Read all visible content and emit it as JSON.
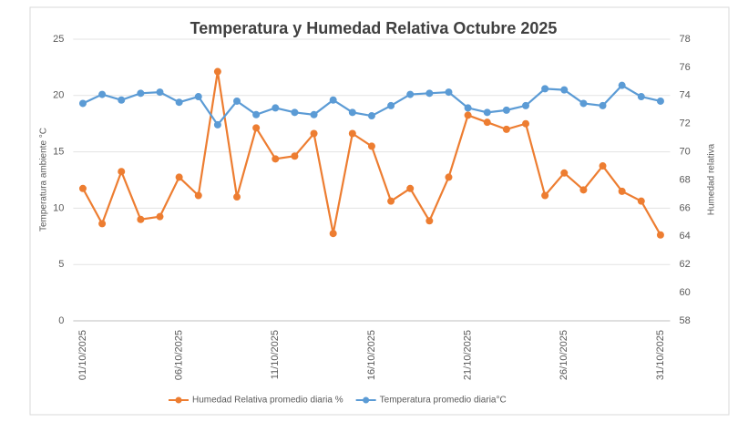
{
  "chart_data": {
    "type": "line",
    "title": "Temperatura y Humedad Relativa Octubre 2025",
    "y_label": "Temperatura ambiente °C",
    "y2_label": "Humedad relativa",
    "categories": [
      "01/10/2025",
      null,
      null,
      null,
      null,
      "06/10/2025",
      null,
      null,
      null,
      null,
      "11/10/2025",
      null,
      null,
      null,
      null,
      "16/10/2025",
      null,
      null,
      null,
      null,
      "21/10/2025",
      null,
      null,
      null,
      null,
      "26/10/2025",
      null,
      null,
      null,
      null,
      "31/10/2025"
    ],
    "series": [
      {
        "name": "Humedad Relativa promedio diaria %",
        "color": "#ed7d31",
        "axis": "y2",
        "values": [
          67.4,
          64.9,
          68.6,
          65.2,
          65.4,
          68.2,
          66.9,
          75.7,
          66.8,
          71.7,
          69.5,
          69.7,
          71.3,
          64.2,
          71.3,
          70.4,
          66.5,
          67.4,
          65.1,
          68.2,
          72.6,
          72.1,
          71.6,
          72.0,
          66.9,
          68.5,
          67.3,
          69.0,
          67.2,
          66.5,
          64.1
        ]
      },
      {
        "name": "Temperatura promedio diaria°C",
        "color": "#5b9bd5",
        "values": [
          19.3,
          20.1,
          19.6,
          20.2,
          20.3,
          19.4,
          19.9,
          17.4,
          19.5,
          18.3,
          18.9,
          18.5,
          18.3,
          19.6,
          18.5,
          18.2,
          19.1,
          20.1,
          20.2,
          20.3,
          18.9,
          18.5,
          18.7,
          19.1,
          20.6,
          20.5,
          19.3,
          19.1,
          20.9,
          19.9,
          19.5
        ]
      }
    ],
    "ylim": [
      0,
      25
    ],
    "yticks": [
      0,
      5,
      10,
      15,
      20,
      25
    ],
    "y2lim": [
      58,
      78
    ],
    "y2ticks": [
      58,
      60,
      62,
      64,
      66,
      68,
      70,
      72,
      74,
      76,
      78
    ],
    "grid": true,
    "legend": "bottom"
  }
}
